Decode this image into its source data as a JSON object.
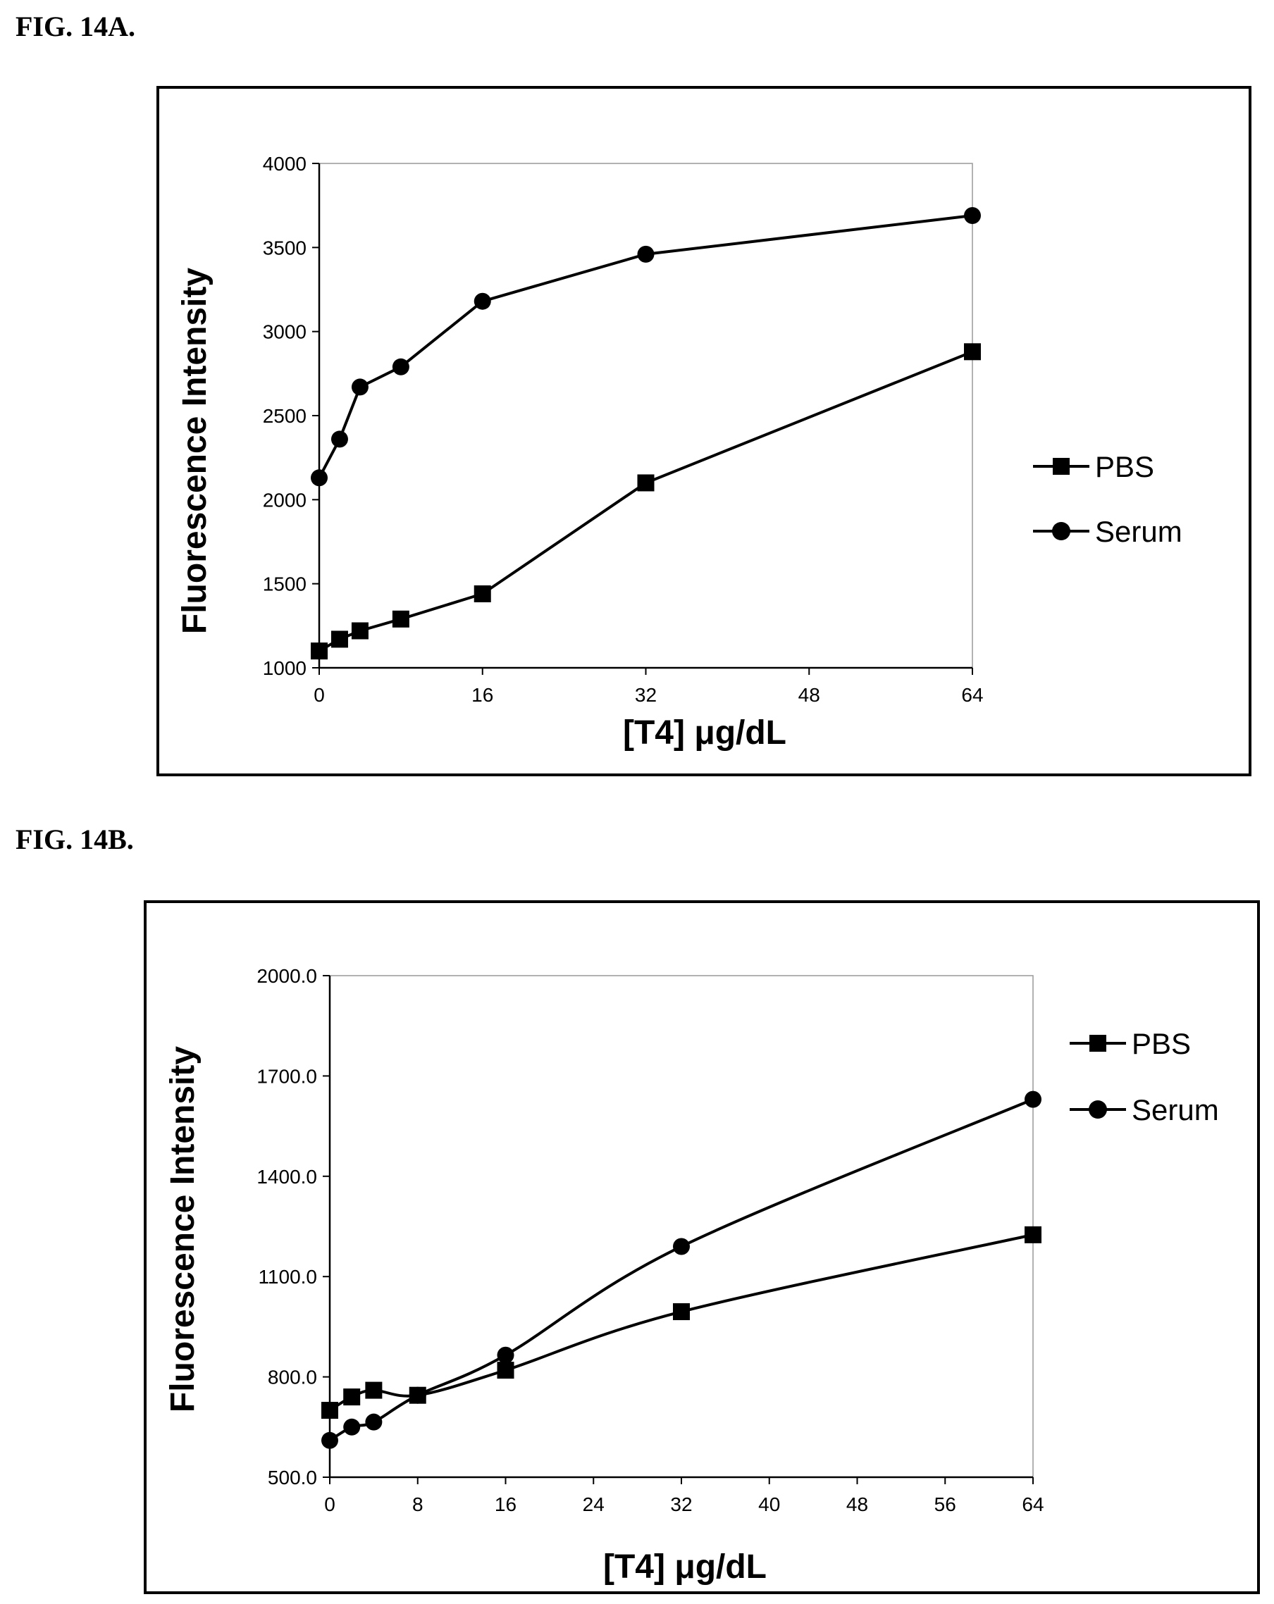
{
  "figures": [
    {
      "label": "FIG. 14A."
    },
    {
      "label": "FIG. 14B."
    }
  ],
  "colors": {
    "line": "#000000",
    "frame": "#000000",
    "plot_border": "#999999"
  },
  "chart_data": [
    {
      "type": "line",
      "title": "",
      "xlabel": "[T4] μg/dL",
      "ylabel": "Fluorescence Intensity",
      "xlim": [
        0,
        64
      ],
      "ylim": [
        1000,
        4000
      ],
      "xticks": [
        "0",
        "16",
        "32",
        "48",
        "64"
      ],
      "xtick_values": [
        0,
        16,
        32,
        48,
        64
      ],
      "yticks": [
        "1000",
        "1500",
        "2000",
        "2500",
        "3000",
        "3500",
        "4000"
      ],
      "ytick_values": [
        1000,
        1500,
        2000,
        2500,
        3000,
        3500,
        4000
      ],
      "smooth": false,
      "grid": false,
      "legend_position": "right",
      "series": [
        {
          "name": "PBS",
          "marker": "square",
          "x": [
            0,
            2,
            4,
            8,
            16,
            32,
            64
          ],
          "y": [
            1100,
            1170,
            1220,
            1290,
            1440,
            2100,
            2880
          ]
        },
        {
          "name": "Serum",
          "marker": "circle",
          "x": [
            0,
            2,
            4,
            8,
            16,
            32,
            64
          ],
          "y": [
            2130,
            2360,
            2670,
            2790,
            3180,
            3460,
            3690
          ]
        }
      ]
    },
    {
      "type": "line",
      "title": "",
      "xlabel": "[T4] μg/dL",
      "ylabel": "Fluorescence Intensity",
      "xlim": [
        0,
        64
      ],
      "ylim": [
        500,
        2000
      ],
      "xticks": [
        "0",
        "8",
        "16",
        "24",
        "32",
        "40",
        "48",
        "56",
        "64"
      ],
      "xtick_values": [
        0,
        8,
        16,
        24,
        32,
        40,
        48,
        56,
        64
      ],
      "yticks": [
        "500.0",
        "800.0",
        "1100.0",
        "1400.0",
        "1700.0",
        "2000.0"
      ],
      "ytick_values": [
        500,
        800,
        1100,
        1400,
        1700,
        2000
      ],
      "smooth": true,
      "grid": false,
      "legend_position": "top-right",
      "series": [
        {
          "name": "PBS",
          "marker": "square",
          "x": [
            0,
            2,
            4,
            8,
            16,
            32,
            64
          ],
          "y": [
            700,
            740,
            760,
            745,
            820,
            995,
            1225
          ]
        },
        {
          "name": "Serum",
          "marker": "circle",
          "x": [
            0,
            2,
            4,
            8,
            16,
            32,
            64
          ],
          "y": [
            610,
            650,
            665,
            745,
            865,
            1190,
            1630
          ]
        }
      ]
    }
  ]
}
